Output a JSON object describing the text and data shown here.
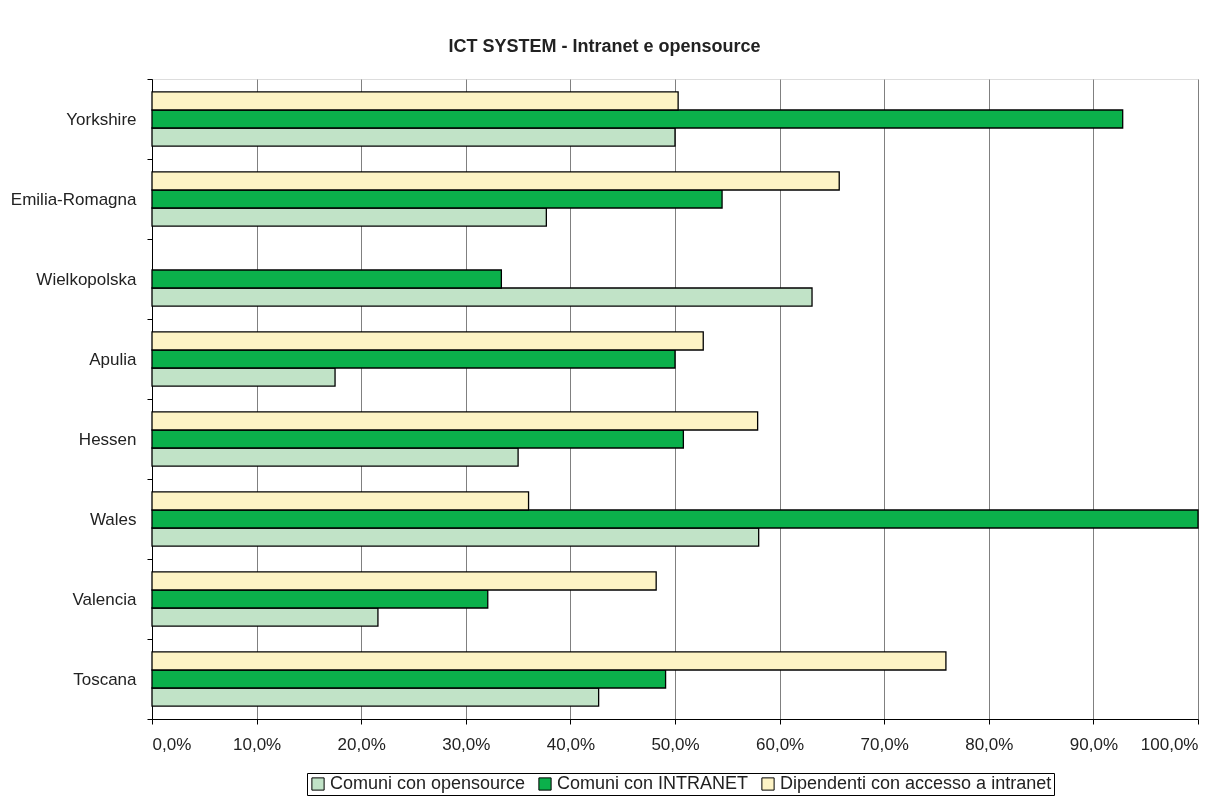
{
  "chart_data": {
    "type": "bar",
    "orientation": "horizontal",
    "title": "ICT SYSTEM - Intranet e opensource",
    "categories": [
      "Yorkshire",
      "Emilia-Romagna",
      "Wielkopolska",
      "Apulia",
      "Hessen",
      "Wales",
      "Valencia",
      "Toscana"
    ],
    "series": [
      {
        "name": "Comuni con opensource",
        "color": "#c1e3c7",
        "values": [
          50.0,
          37.7,
          63.1,
          17.5,
          35.0,
          58.0,
          21.6,
          42.7
        ]
      },
      {
        "name": "Comuni con INTRANET",
        "color": "#0bb04b",
        "values": [
          92.8,
          54.5,
          33.4,
          50.0,
          50.8,
          100.0,
          32.1,
          49.1
        ]
      },
      {
        "name": "Dipendenti con accesso a intranet",
        "color": "#fdf3c5",
        "values": [
          50.3,
          65.7,
          null,
          52.7,
          57.9,
          36.0,
          48.2,
          75.9
        ]
      }
    ],
    "xlim": [
      0,
      100
    ],
    "xticks": [
      {
        "value": 0,
        "label": "0,0%"
      },
      {
        "value": 10,
        "label": "10,0%"
      },
      {
        "value": 20,
        "label": "20,0%"
      },
      {
        "value": 30,
        "label": "30,0%"
      },
      {
        "value": 40,
        "label": "40,0%"
      },
      {
        "value": 50,
        "label": "50,0%"
      },
      {
        "value": 60,
        "label": "60,0%"
      },
      {
        "value": 70,
        "label": "70,0%"
      },
      {
        "value": 80,
        "label": "80,0%"
      },
      {
        "value": 90,
        "label": "90,0%"
      },
      {
        "value": 100,
        "label": "100,0%"
      }
    ],
    "grid": "x",
    "legend": "bottom"
  }
}
